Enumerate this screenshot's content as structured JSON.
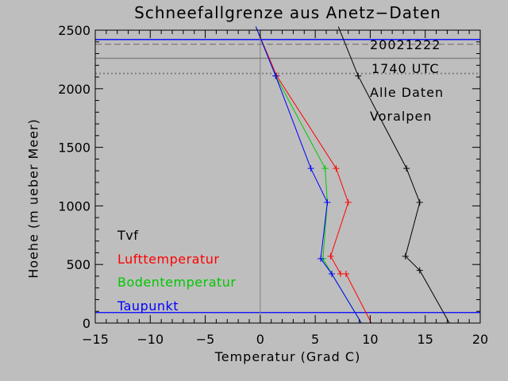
{
  "chart_data": {
    "type": "line",
    "title": "Schneefallgrenze aus Anetz−Daten",
    "xlabel": "Temperatur (Grad C)",
    "ylabel": "Hoehe (m ueber Meer)",
    "xlim": [
      -15,
      20
    ],
    "ylim": [
      0,
      2500
    ],
    "xticks": [
      "−15",
      "−10",
      "−5",
      "0",
      "5",
      "10",
      "15",
      "20"
    ],
    "yticks": [
      "0",
      "500",
      "1000",
      "1500",
      "2000",
      "2500"
    ],
    "info_lines": [
      "20021222",
      "1740 UTC",
      "Alle Daten",
      "Voralpen"
    ],
    "series": [
      {
        "name": "Tvf",
        "color": "#000000",
        "points": [
          [
            17.2,
            0
          ],
          [
            14.5,
            450
          ],
          [
            13.2,
            570
          ],
          [
            14.5,
            1030
          ],
          [
            13.3,
            1320
          ],
          [
            8.9,
            2110
          ],
          [
            7.1,
            2530
          ]
        ]
      },
      {
        "name": "Lufttemperatur",
        "color": "#ff0000",
        "points": [
          [
            10.1,
            0
          ],
          [
            7.8,
            420
          ],
          [
            7.3,
            420
          ],
          [
            6.4,
            570
          ],
          [
            8.0,
            1030
          ],
          [
            6.9,
            1320
          ],
          [
            1.5,
            2110
          ],
          [
            -0.4,
            2530
          ]
        ]
      },
      {
        "name": "Bodentemperatur",
        "color": "#00c800",
        "points": [
          [
            9.2,
            0
          ],
          [
            6.5,
            420
          ],
          [
            5.7,
            550
          ],
          [
            6.1,
            1030
          ],
          [
            5.9,
            1320
          ],
          [
            1.4,
            2110
          ],
          [
            -0.4,
            2530
          ]
        ]
      },
      {
        "name": "Taupunkt",
        "color": "#0000ff",
        "points": [
          [
            9.2,
            0
          ],
          [
            6.5,
            420
          ],
          [
            5.5,
            550
          ],
          [
            6.1,
            1030
          ],
          [
            4.6,
            1320
          ],
          [
            1.4,
            2110
          ],
          [
            -0.4,
            2530
          ]
        ]
      }
    ],
    "hlines": [
      {
        "y": 90,
        "color": "#0000ff",
        "style": "solid"
      },
      {
        "y": 2130,
        "color": "#808080",
        "style": "dotted"
      },
      {
        "y": 2260,
        "color": "#808080",
        "style": "solid"
      },
      {
        "y": 2380,
        "color": "#808080",
        "style": "dashed"
      },
      {
        "y": 2420,
        "color": "#0000ff",
        "style": "solid"
      }
    ],
    "vlines": [
      {
        "x": 0,
        "color": "#808080",
        "style": "solid"
      }
    ],
    "legend_position": "bottom-left"
  }
}
